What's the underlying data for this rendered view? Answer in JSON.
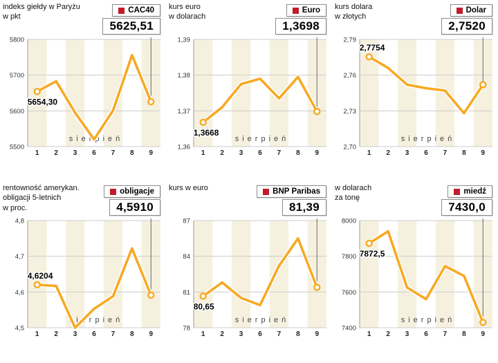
{
  "colors": {
    "line": "#F7A924",
    "line_halo": "#FFFFFF",
    "legend_square": "#C11B2C",
    "band": "#F6F1DF",
    "grid": "#CCCCCC",
    "axis": "#9B9B9B",
    "connector": "#666666",
    "text_dark": "#111111"
  },
  "chart_data": [
    {
      "type": "line",
      "title": "indeks giełdy w Paryżu\nw pkt",
      "legend": "CAC40",
      "current_value": "5625,51",
      "first_value": "5654,30",
      "first_label_pos": "below",
      "xlabel": "sierpień",
      "x": [
        "1",
        "2",
        "3",
        "6",
        "7",
        "8",
        "9"
      ],
      "values": [
        5654.3,
        5683,
        5595,
        5520,
        5601,
        5756,
        5625.51
      ],
      "ylim": [
        5500,
        5800
      ],
      "y_ticks": [
        5500,
        5600,
        5700,
        5800
      ],
      "y_tick_labels": [
        "5500",
        "5600",
        "5700",
        "5800"
      ]
    },
    {
      "type": "line",
      "title": "kurs euro\nw dolarach",
      "legend": "Euro",
      "current_value": "1,3698",
      "first_value": "1,3668",
      "first_label_pos": "below",
      "xlabel": "sierpień",
      "x": [
        "1",
        "2",
        "3",
        "6",
        "7",
        "8",
        "9"
      ],
      "values": [
        1.3668,
        1.371,
        1.3775,
        1.379,
        1.3735,
        1.3795,
        1.3698
      ],
      "ylim": [
        1.36,
        1.39
      ],
      "y_ticks": [
        1.36,
        1.37,
        1.38,
        1.39
      ],
      "y_tick_labels": [
        "1,36",
        "1,37",
        "1,38",
        "1,39"
      ]
    },
    {
      "type": "line",
      "title": "kurs dolara\nw złotych",
      "legend": "Dolar",
      "current_value": "2,7520",
      "first_value": "2,7754",
      "first_label_pos": "above",
      "xlabel": "sierpień",
      "x": [
        "1",
        "2",
        "3",
        "6",
        "7",
        "8",
        "9"
      ],
      "values": [
        2.7754,
        2.766,
        2.752,
        2.749,
        2.747,
        2.728,
        2.752
      ],
      "ylim": [
        2.7,
        2.79
      ],
      "y_ticks": [
        2.7,
        2.73,
        2.76,
        2.79
      ],
      "y_tick_labels": [
        "2,70",
        "2,73",
        "2,76",
        "2,79"
      ]
    },
    {
      "type": "line",
      "title": "rentowność amerykan.\nobligacji 5-letnich\nw proc.",
      "legend": "obligacje",
      "current_value": "4,5910",
      "first_value": "4,6204",
      "first_label_pos": "above",
      "xlabel": "sierpień",
      "x": [
        "1",
        "2",
        "3",
        "6",
        "7",
        "8",
        "9"
      ],
      "values": [
        4.6204,
        4.617,
        4.5,
        4.553,
        4.588,
        4.722,
        4.591
      ],
      "ylim": [
        4.5,
        4.8
      ],
      "y_ticks": [
        4.5,
        4.6,
        4.7,
        4.8
      ],
      "y_tick_labels": [
        "4,5",
        "4,6",
        "4,7",
        "4,8"
      ]
    },
    {
      "type": "line",
      "title": "kurs w euro",
      "legend": "BNP Paribas",
      "current_value": "81,39",
      "first_value": "80,65",
      "first_label_pos": "below",
      "xlabel": "sierpień",
      "x": [
        "1",
        "2",
        "3",
        "6",
        "7",
        "8",
        "9"
      ],
      "values": [
        80.65,
        81.8,
        80.5,
        79.9,
        83.2,
        85.5,
        81.39
      ],
      "ylim": [
        78,
        87
      ],
      "y_ticks": [
        78,
        81,
        84,
        87
      ],
      "y_tick_labels": [
        "78",
        "81",
        "84",
        "87"
      ]
    },
    {
      "type": "line",
      "title": "w dolarach\nza tonę",
      "legend": "miedź",
      "current_value": "7430,0",
      "first_value": "7872,5",
      "first_label_pos": "below",
      "xlabel": "sierpień",
      "x": [
        "1",
        "2",
        "3",
        "6",
        "7",
        "8",
        "9"
      ],
      "values": [
        7872.5,
        7940,
        7625,
        7560,
        7745,
        7690,
        7430
      ],
      "ylim": [
        7400,
        8000
      ],
      "y_ticks": [
        7400,
        7600,
        7800,
        8000
      ],
      "y_tick_labels": [
        "7400",
        "7600",
        "7800",
        "8000"
      ]
    }
  ]
}
